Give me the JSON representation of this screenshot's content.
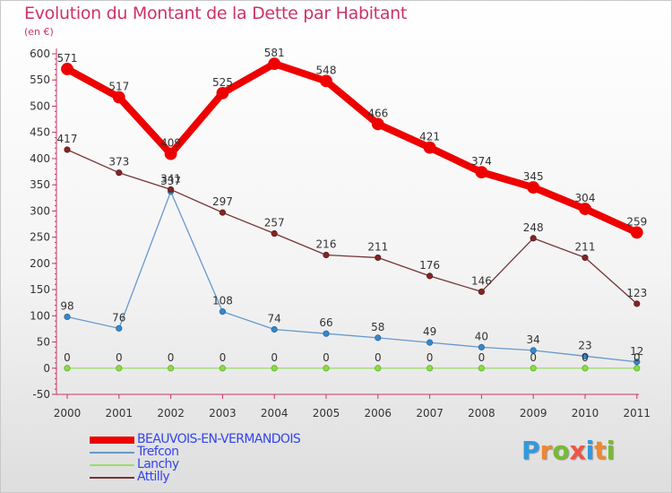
{
  "chart_data": {
    "type": "line",
    "title": "Evolution du Montant de la Dette par Habitant",
    "subtitle": "(en €)",
    "xlabel": "",
    "ylabel": "",
    "ylim": [
      -50,
      600
    ],
    "yticks": [
      "-50",
      "0",
      "50",
      "100",
      "150",
      "200",
      "250",
      "300",
      "350",
      "400",
      "450",
      "500",
      "550",
      "600"
    ],
    "categories": [
      "2000",
      "2001",
      "2002",
      "2003",
      "2004",
      "2005",
      "2006",
      "2007",
      "2008",
      "2009",
      "2010",
      "2011"
    ],
    "grid": false,
    "legend_position": "bottom-left",
    "series": [
      {
        "name": "BEAUVOIS-EN-VERMANDOIS",
        "color": "#ee0000",
        "values": [
          571,
          517,
          409,
          525,
          581,
          548,
          466,
          421,
          374,
          345,
          304,
          259
        ],
        "labels": [
          "571",
          "517",
          "409",
          "525",
          "581",
          "548",
          "466",
          "421",
          "374",
          "345",
          "304",
          "259"
        ]
      },
      {
        "name": "Trefcon",
        "color": "#6699cc",
        "values": [
          98,
          76,
          337,
          108,
          74,
          66,
          58,
          49,
          40,
          34,
          23,
          12
        ],
        "labels": [
          "98",
          "76",
          "337",
          "108",
          "74",
          "66",
          "58",
          "49",
          "40",
          "34",
          "23",
          "12"
        ]
      },
      {
        "name": "Lanchy",
        "color": "#99dd66",
        "values": [
          0,
          0,
          0,
          0,
          0,
          0,
          0,
          0,
          0,
          0,
          0,
          0
        ],
        "labels": [
          "0",
          "0",
          "0",
          "0",
          "0",
          "0",
          "0",
          "0",
          "0",
          "0",
          "0",
          "0"
        ]
      },
      {
        "name": "Attilly",
        "color": "#773333",
        "values": [
          417,
          373,
          341,
          297,
          257,
          216,
          211,
          176,
          146,
          248,
          211,
          123
        ],
        "labels": [
          "417",
          "373",
          "341",
          "297",
          "257",
          "216",
          "211",
          "176",
          "146",
          "248",
          "211",
          "123"
        ]
      }
    ]
  },
  "brand": {
    "letters": [
      "P",
      "r",
      "o",
      "x",
      "i",
      "t",
      "i"
    ],
    "colors": [
      "#3399dd",
      "#ee8833",
      "#77bb33",
      "#ee5544",
      "#3399dd",
      "#ee8833",
      "#77bb33"
    ]
  }
}
